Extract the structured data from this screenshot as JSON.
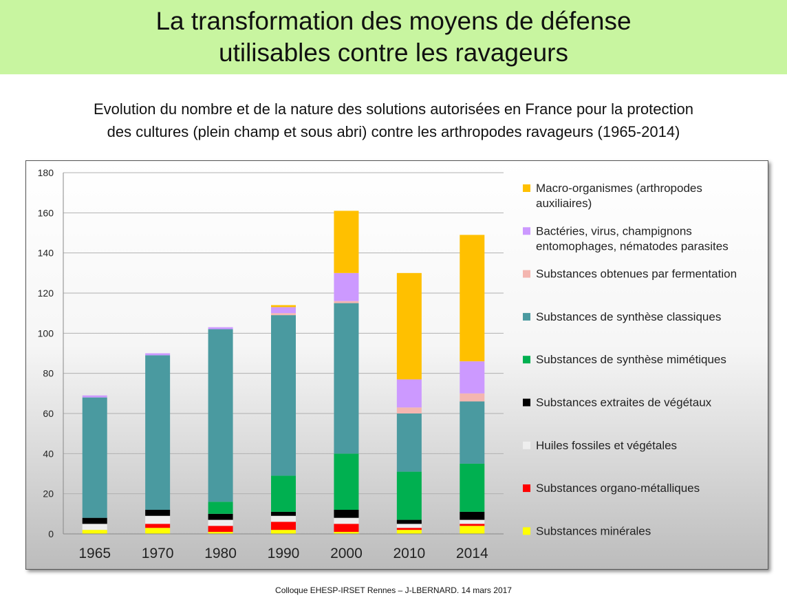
{
  "header": {
    "title_line1": "La transformation des moyens de défense",
    "title_line2": "utilisables contre les ravageurs"
  },
  "subtitle": {
    "line1": "Evolution du nombre et de la nature des solutions autorisées en France pour la protection",
    "line2": "des cultures (plein champ et sous abri) contre les arthropodes ravageurs (1965-2014)"
  },
  "footer": "Colloque EHESP-IRSET Rennes – J-LBERNARD. 14 mars 2017",
  "chart_data": {
    "type": "bar",
    "stacked": true,
    "categories": [
      "1965",
      "1970",
      "1980",
      "1990",
      "2000",
      "2010",
      "2014"
    ],
    "ylim": [
      0,
      180
    ],
    "yticks": [
      0,
      20,
      40,
      60,
      80,
      100,
      120,
      140,
      160,
      180
    ],
    "grid": true,
    "legend_position": "right",
    "series": [
      {
        "name": "Substances minérales",
        "color": "#ffff00",
        "values": [
          2,
          3,
          1,
          2,
          1,
          2,
          4
        ]
      },
      {
        "name": "Substances organo-métalliques",
        "color": "#ff0000",
        "values": [
          0,
          2,
          3,
          4,
          4,
          1,
          1
        ]
      },
      {
        "name": "Huiles fossiles et végétales",
        "color": "#eeeeee",
        "values": [
          3,
          4,
          3,
          3,
          3,
          2,
          2
        ]
      },
      {
        "name": "Substances extraites de végétaux",
        "color": "#000000",
        "values": [
          3,
          3,
          3,
          2,
          4,
          2,
          4
        ]
      },
      {
        "name": "Substances de synthèse mimétiques",
        "color": "#00b050",
        "values": [
          0,
          0,
          6,
          18,
          28,
          24,
          24
        ]
      },
      {
        "name": "Substances de synthèse classiques",
        "color": "#4a9aa0",
        "values": [
          60,
          77,
          86,
          80,
          75,
          29,
          31
        ]
      },
      {
        "name": "Substances obtenues par fermentation",
        "color": "#f4b6b0",
        "values": [
          0,
          0,
          0,
          1,
          1,
          3,
          4
        ]
      },
      {
        "name": "Bactéries, virus, champignons entomophages, nématodes parasites",
        "color": "#cc99ff",
        "values": [
          1,
          1,
          1,
          3,
          14,
          14,
          16
        ]
      },
      {
        "name": "Macro-organismes (arthropodes auxiliaires)",
        "color": "#ffc000",
        "values": [
          0,
          0,
          0,
          1,
          31,
          53,
          63
        ]
      }
    ]
  }
}
